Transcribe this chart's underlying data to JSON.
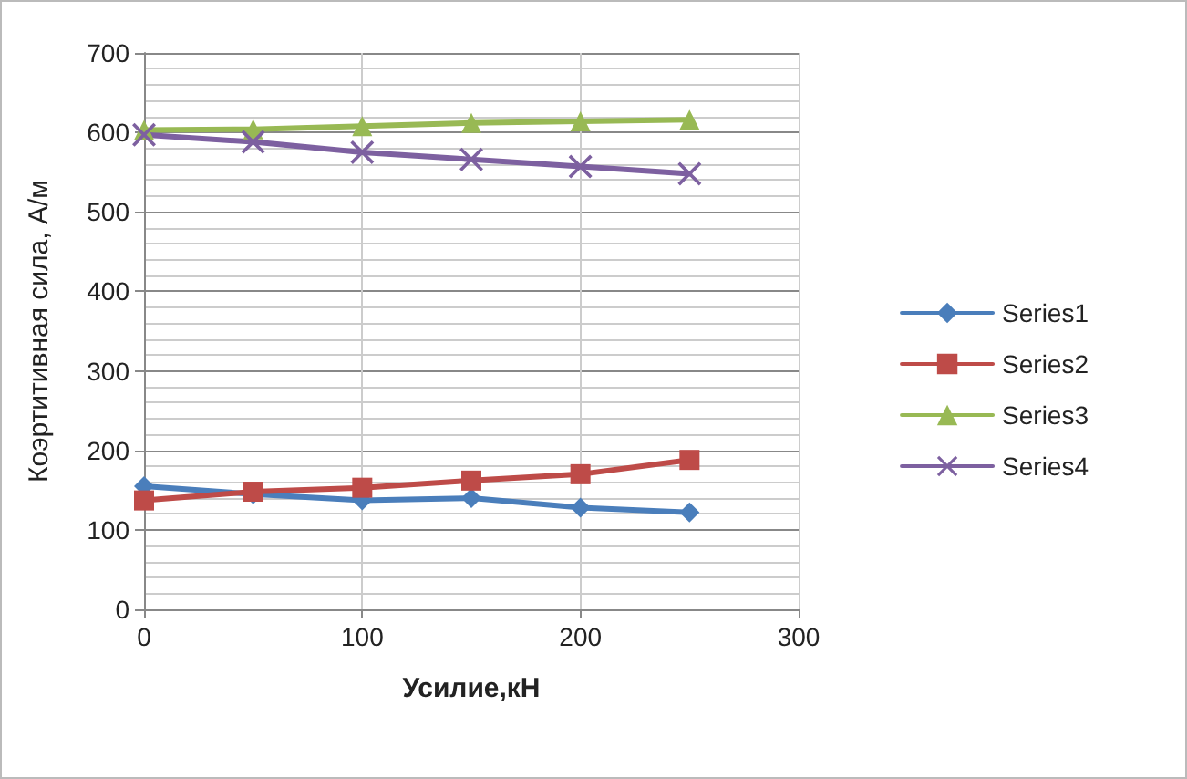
{
  "chart_data": {
    "type": "line",
    "xlabel": "Усилие,кН",
    "ylabel": "Коэртитивная сила, А/м",
    "x": [
      0,
      50,
      100,
      150,
      200,
      250
    ],
    "series": [
      {
        "name": "Series1",
        "color": "#4a7ebb",
        "marker": "diamond",
        "values": [
          155,
          145,
          137,
          140,
          128,
          122
        ]
      },
      {
        "name": "Series2",
        "color": "#be4b48",
        "marker": "square",
        "values": [
          137,
          148,
          153,
          162,
          170,
          188
        ]
      },
      {
        "name": "Series3",
        "color": "#98b954",
        "marker": "triangle",
        "values": [
          603,
          604,
          608,
          612,
          614,
          616
        ]
      },
      {
        "name": "Series4",
        "color": "#7d60a0",
        "marker": "cross",
        "values": [
          597,
          588,
          575,
          566,
          557,
          548
        ]
      }
    ],
    "xlim": [
      0,
      300
    ],
    "xticks": [
      0,
      100,
      200,
      300
    ],
    "ylim": [
      0,
      700
    ],
    "yticks": [
      0,
      100,
      200,
      300,
      400,
      500,
      600,
      700
    ],
    "grid": true,
    "legend": "right",
    "line_style": "solid"
  }
}
